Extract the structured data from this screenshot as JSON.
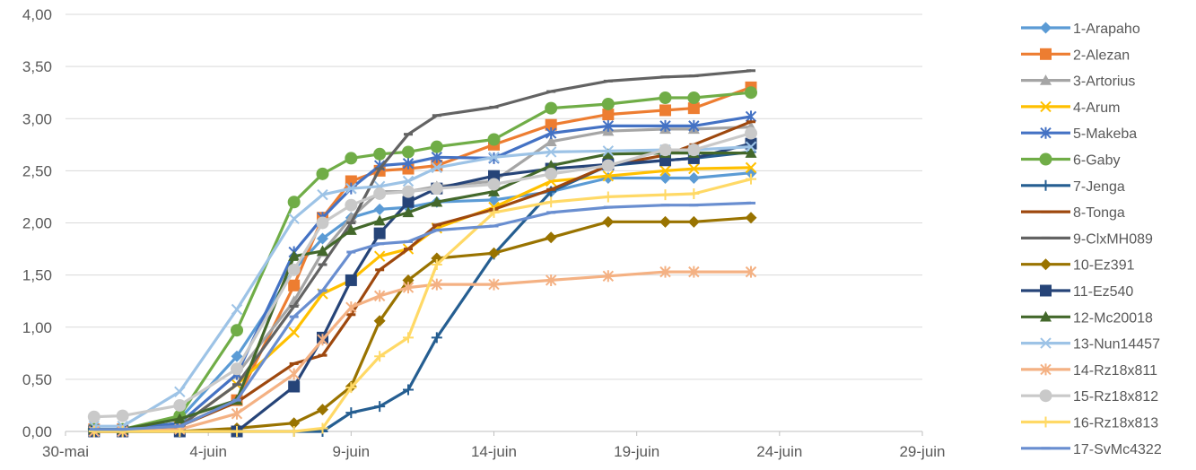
{
  "chart_data": {
    "type": "line",
    "title": "",
    "xlabel": "",
    "ylabel": "",
    "ylim": [
      0,
      4
    ],
    "x_tick_labels": [
      "30-mai",
      "4-juin",
      "9-juin",
      "14-juin",
      "19-juin",
      "24-juin",
      "29-juin"
    ],
    "y_tick_labels": [
      "0,00",
      "0,50",
      "1,00",
      "1,50",
      "2,00",
      "2,50",
      "3,00",
      "3,50",
      "4,00"
    ],
    "x_axis_note": "days counted from 30-mai; tick every 5 days",
    "x": [
      1,
      2,
      4,
      6,
      8,
      9,
      10,
      11,
      12,
      13,
      15,
      17,
      19,
      21,
      22,
      24
    ],
    "grid": true,
    "legend_position": "right",
    "series": [
      {
        "name": "1-Arapaho",
        "color": "#5B9BD5",
        "marker": "diamond",
        "values": [
          0.02,
          0.02,
          0.12,
          0.72,
          1.55,
          1.85,
          2.05,
          2.13,
          2.15,
          2.2,
          2.22,
          2.3,
          2.43,
          2.43,
          2.43,
          2.48
        ]
      },
      {
        "name": "2-Alezan",
        "color": "#ED7D31",
        "marker": "square",
        "values": [
          0.02,
          0.02,
          0.05,
          0.3,
          1.4,
          2.05,
          2.4,
          2.5,
          2.52,
          2.55,
          2.75,
          2.94,
          3.04,
          3.08,
          3.1,
          3.3
        ]
      },
      {
        "name": "3-Artorius",
        "color": "#A5A5A5",
        "marker": "triangle",
        "values": [
          0.02,
          0.02,
          0.08,
          0.55,
          1.25,
          1.72,
          2.05,
          2.3,
          2.3,
          2.35,
          2.4,
          2.78,
          2.88,
          2.9,
          2.9,
          2.92
        ]
      },
      {
        "name": "4-Arum",
        "color": "#FFC000",
        "marker": "x",
        "values": [
          0.0,
          0.0,
          0.05,
          0.45,
          0.95,
          1.32,
          1.45,
          1.68,
          1.75,
          1.95,
          2.15,
          2.4,
          2.45,
          2.5,
          2.52,
          2.53
        ]
      },
      {
        "name": "5-Makeba",
        "color": "#4472C4",
        "marker": "star",
        "values": [
          0.02,
          0.02,
          0.08,
          0.55,
          1.72,
          2.05,
          2.33,
          2.55,
          2.57,
          2.63,
          2.62,
          2.86,
          2.93,
          2.93,
          2.93,
          3.02
        ]
      },
      {
        "name": "6-Gaby",
        "color": "#70AD47",
        "marker": "circle",
        "values": [
          0.02,
          0.02,
          0.15,
          0.97,
          2.2,
          2.47,
          2.62,
          2.66,
          2.68,
          2.73,
          2.8,
          3.1,
          3.14,
          3.2,
          3.2,
          3.25
        ]
      },
      {
        "name": "7-Jenga",
        "color": "#255E91",
        "marker": "plus",
        "values": [
          0.0,
          0.0,
          0.0,
          0.0,
          0.0,
          0.0,
          0.18,
          0.24,
          0.4,
          0.9,
          1.7,
          2.3,
          2.55,
          2.6,
          2.62,
          2.68
        ]
      },
      {
        "name": "8-Tonga",
        "color": "#9E480E",
        "marker": "dash",
        "values": [
          0.0,
          0.0,
          0.05,
          0.28,
          0.65,
          0.73,
          1.12,
          1.55,
          1.75,
          1.98,
          2.13,
          2.32,
          2.55,
          2.65,
          2.75,
          2.97
        ]
      },
      {
        "name": "9-ClxMH089",
        "color": "#636363",
        "marker": "dash",
        "values": [
          0.02,
          0.02,
          0.05,
          0.45,
          1.2,
          1.6,
          2.0,
          2.52,
          2.85,
          3.03,
          3.11,
          3.26,
          3.36,
          3.4,
          3.41,
          3.46
        ]
      },
      {
        "name": "10-Ez391",
        "color": "#997300",
        "marker": "diamond",
        "values": [
          0.0,
          0.0,
          0.0,
          0.03,
          0.08,
          0.21,
          0.43,
          1.06,
          1.45,
          1.66,
          1.71,
          1.86,
          2.01,
          2.01,
          2.01,
          2.05
        ]
      },
      {
        "name": "11-Ez540",
        "color": "#264478",
        "marker": "square",
        "values": [
          0.0,
          0.0,
          0.0,
          0.0,
          0.43,
          0.9,
          1.45,
          1.9,
          2.2,
          2.33,
          2.45,
          2.52,
          2.56,
          2.6,
          2.62,
          2.76
        ]
      },
      {
        "name": "12-Mc20018",
        "color": "#43682B",
        "marker": "triangle",
        "values": [
          0.02,
          0.02,
          0.12,
          0.3,
          1.68,
          1.73,
          1.93,
          2.02,
          2.1,
          2.2,
          2.3,
          2.55,
          2.66,
          2.67,
          2.67,
          2.67
        ]
      },
      {
        "name": "13-Nun14457",
        "color": "#9DC3E6",
        "marker": "x",
        "values": [
          0.05,
          0.05,
          0.38,
          1.17,
          2.04,
          2.27,
          2.33,
          2.35,
          2.4,
          2.53,
          2.63,
          2.68,
          2.69,
          2.7,
          2.7,
          2.73
        ]
      },
      {
        "name": "14-Rz18x811",
        "color": "#F4B183",
        "marker": "star",
        "values": [
          0.0,
          0.0,
          0.02,
          0.17,
          0.55,
          0.88,
          1.19,
          1.3,
          1.38,
          1.41,
          1.41,
          1.45,
          1.49,
          1.53,
          1.53,
          1.53
        ]
      },
      {
        "name": "15-Rz18x812",
        "color": "#C9C9C9",
        "marker": "circle",
        "values": [
          0.14,
          0.15,
          0.25,
          0.6,
          1.55,
          2.0,
          2.17,
          2.28,
          2.3,
          2.33,
          2.37,
          2.47,
          2.55,
          2.7,
          2.7,
          2.86
        ]
      },
      {
        "name": "16-Rz18x813",
        "color": "#FFD966",
        "marker": "plus",
        "values": [
          0.0,
          0.0,
          0.0,
          0.0,
          0.0,
          0.03,
          0.42,
          0.72,
          0.9,
          1.6,
          2.1,
          2.2,
          2.25,
          2.27,
          2.28,
          2.42
        ]
      },
      {
        "name": "17-SvMc4322",
        "color": "#698ED0",
        "marker": "dash",
        "values": [
          0.02,
          0.02,
          0.05,
          0.3,
          1.1,
          1.35,
          1.72,
          1.8,
          1.82,
          1.93,
          1.97,
          2.1,
          2.15,
          2.17,
          2.17,
          2.19
        ]
      }
    ]
  }
}
